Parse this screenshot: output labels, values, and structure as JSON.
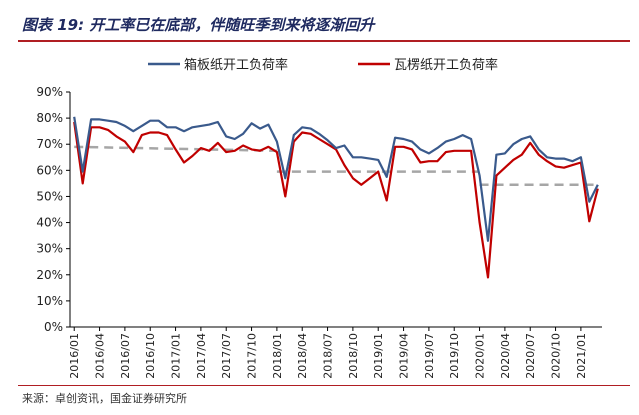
{
  "figure": {
    "title": "图表 19:  开工率已在底部，伴随旺季到来将逐渐回升",
    "source": "来源：卓创资讯，国金证券研究所"
  },
  "colors": {
    "series1": "#3a5a8c",
    "series2": "#c00000",
    "reference": "#a6a6a6",
    "accent": "#b01e23"
  },
  "chart_data": {
    "type": "line",
    "title": "",
    "xlabel": "",
    "ylabel": "",
    "ylim": [
      0,
      90
    ],
    "yticks": [
      "0%",
      "10%",
      "20%",
      "30%",
      "40%",
      "50%",
      "60%",
      "70%",
      "80%",
      "90%"
    ],
    "xticks": [
      "2016/01",
      "2016/04",
      "2016/07",
      "2016/10",
      "2017/01",
      "2017/04",
      "2017/07",
      "2017/10",
      "2018/01",
      "2018/04",
      "2018/07",
      "2018/10",
      "2019/01",
      "2019/04",
      "2019/07",
      "2019/10",
      "2020/01",
      "2020/04",
      "2020/07",
      "2020/10",
      "2021/01"
    ],
    "x": [
      "2016/01",
      "2016/02",
      "2016/03",
      "2016/04",
      "2016/05",
      "2016/06",
      "2016/07",
      "2016/08",
      "2016/09",
      "2016/10",
      "2016/11",
      "2016/12",
      "2017/01",
      "2017/02",
      "2017/03",
      "2017/04",
      "2017/05",
      "2017/06",
      "2017/07",
      "2017/08",
      "2017/09",
      "2017/10",
      "2017/11",
      "2017/12",
      "2018/01",
      "2018/02",
      "2018/03",
      "2018/04",
      "2018/05",
      "2018/06",
      "2018/07",
      "2018/08",
      "2018/09",
      "2018/10",
      "2018/11",
      "2018/12",
      "2019/01",
      "2019/02",
      "2019/03",
      "2019/04",
      "2019/05",
      "2019/06",
      "2019/07",
      "2019/08",
      "2019/09",
      "2019/10",
      "2019/11",
      "2019/12",
      "2020/01",
      "2020/02",
      "2020/03",
      "2020/04",
      "2020/05",
      "2020/06",
      "2020/07",
      "2020/08",
      "2020/09",
      "2020/10",
      "2020/11",
      "2020/12",
      "2021/01",
      "2021/02",
      "2021/03"
    ],
    "series": [
      {
        "name": "箱板纸开工负荷率",
        "values": [
          80.5,
          59.5,
          79.5,
          79.5,
          79,
          78.5,
          77,
          75,
          77,
          79,
          79,
          76.5,
          76.5,
          75,
          76.5,
          77,
          77.5,
          78.5,
          73,
          72,
          74,
          78,
          76,
          77.5,
          71,
          57,
          73.5,
          76.5,
          76,
          74,
          71.5,
          68.5,
          69.5,
          65,
          65,
          64.5,
          64,
          57.5,
          72.5,
          72,
          71,
          68,
          66.5,
          68.5,
          71,
          72,
          73.5,
          72,
          58,
          33,
          66,
          66.5,
          70,
          72,
          73,
          68,
          65,
          64.5,
          64.5,
          63.5,
          65,
          48,
          54.5
        ]
      },
      {
        "name": "瓦楞纸开工负荷率",
        "values": [
          78.5,
          55,
          76.5,
          76.5,
          75.5,
          73,
          71,
          67,
          73.5,
          74.5,
          74.5,
          73.5,
          68,
          63,
          65.5,
          68.5,
          67.5,
          70.5,
          67,
          67.5,
          69.5,
          68,
          67.5,
          69,
          67,
          50,
          71,
          74.5,
          74,
          72,
          70,
          68,
          62,
          57,
          54.5,
          57,
          59.5,
          48.5,
          69,
          69,
          68,
          63,
          63.5,
          63.5,
          67,
          67.5,
          67.5,
          67.5,
          40,
          19,
          58,
          61,
          64,
          66,
          70.5,
          66,
          63.5,
          61.5,
          61,
          62,
          63,
          40.5,
          53
        ]
      }
    ],
    "reference_lines": [
      {
        "x_start": "2016/01",
        "x_end": "2018/01",
        "y_start": 69,
        "y_end": 67.5
      },
      {
        "x_start": "2018/01",
        "x_end": "2020/01",
        "y_start": 59.5,
        "y_end": 59.5
      },
      {
        "x_start": "2020/01",
        "x_end": "2021/03",
        "y_start": 54.5,
        "y_end": 54.5
      }
    ],
    "legend": {
      "placement": "top"
    },
    "grid": false
  }
}
